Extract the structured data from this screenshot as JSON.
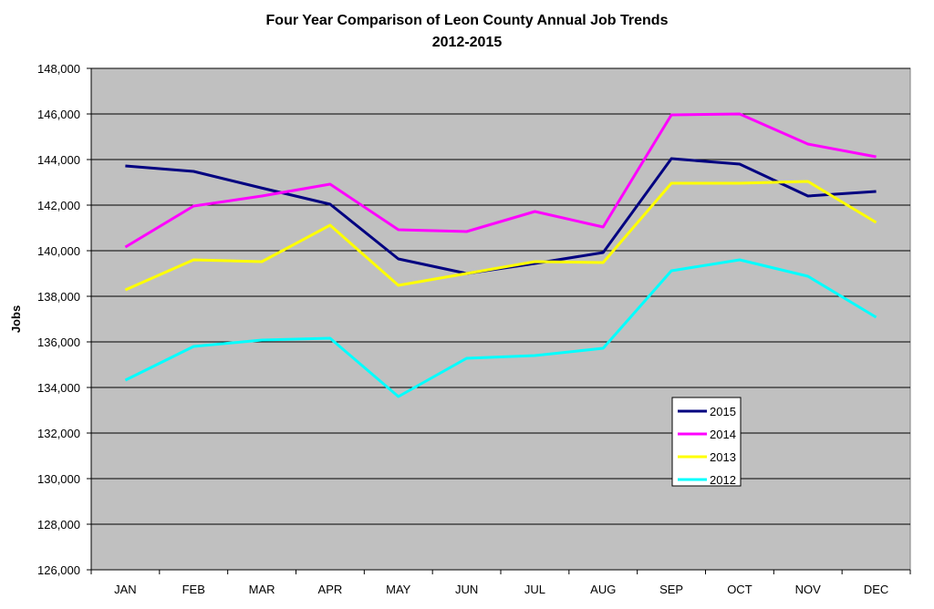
{
  "chart_data": {
    "type": "line",
    "title": "Four Year Comparison of Leon County Annual Job Trends",
    "subtitle": "2012-2015",
    "xlabel": "",
    "ylabel": "Jobs",
    "ylim": [
      126000,
      148000
    ],
    "ytick_step": 2000,
    "ytick_labels": [
      "126,000",
      "128,000",
      "130,000",
      "132,000",
      "134,000",
      "136,000",
      "138,000",
      "140,000",
      "142,000",
      "144,000",
      "146,000",
      "148,000"
    ],
    "grid": true,
    "legend_position": "lower-center-right",
    "categories": [
      "JAN",
      "FEB",
      "MAR",
      "APR",
      "MAY",
      "JUN",
      "JUL",
      "AUG",
      "SEP",
      "OCT",
      "NOV",
      "DEC"
    ],
    "series": [
      {
        "name": "2015",
        "color": "#000080",
        "values": [
          143720,
          143480,
          142750,
          142040,
          139640,
          139000,
          139440,
          139920,
          144040,
          143800,
          142400,
          142600
        ]
      },
      {
        "name": "2014",
        "color": "#ff00ff",
        "values": [
          140160,
          141960,
          142400,
          142920,
          140920,
          140840,
          141720,
          141040,
          145960,
          146000,
          144680,
          144120
        ]
      },
      {
        "name": "2013",
        "color": "#ffff00",
        "values": [
          138280,
          139600,
          139520,
          141120,
          138480,
          139000,
          139520,
          139480,
          142960,
          142960,
          143040,
          141240
        ]
      },
      {
        "name": "2012",
        "color": "#00ffff",
        "values": [
          134320,
          135800,
          136080,
          136160,
          133600,
          135280,
          135400,
          135720,
          139120,
          139600,
          138880,
          137080
        ]
      }
    ],
    "plot_background": "#c0c0c0"
  }
}
